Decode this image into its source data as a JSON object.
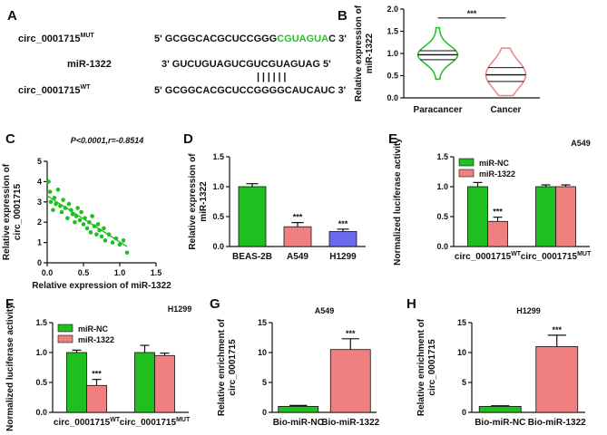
{
  "panels": {
    "A": "A",
    "B": "B",
    "C": "C",
    "D": "D",
    "E": "E",
    "F": "F",
    "G": "G",
    "H": "H"
  },
  "colors": {
    "green": "#1fbf1f",
    "red": "#f08080",
    "blue": "#6b6bf0",
    "black": "#111111",
    "seq_green": "#2bbf2b"
  },
  "panelA": {
    "mut_label": "circ_0001715",
    "mut_sup": "MUT",
    "mut_seq_prefix": "5' GCGGCACGCUCCGGG",
    "mut_seq_green": "CGUAGUA",
    "mut_seq_suffix": "C 3'",
    "mir_label": "miR-1322",
    "mir_seq": "3' GUCUGUAGUCGUCGUAGUAG 5'",
    "pairing": "||||||",
    "wt_label": "circ_0001715",
    "wt_sup": "WT",
    "wt_seq": "5' GCGGCACGCUCCGGGGCAUCAUC 3'"
  },
  "chart_data": [
    {
      "id": "B",
      "type": "violin",
      "ylabel": "Relative expression of miR-1322",
      "ylim": [
        0,
        2.0
      ],
      "yticks": [
        "0.0",
        "0.5",
        "1.0",
        "1.5",
        "2.0"
      ],
      "categories": [
        "Paracancer",
        "Cancer"
      ],
      "series": [
        {
          "name": "Paracancer",
          "min": 0.42,
          "q1": 0.86,
          "median": 0.97,
          "q3": 1.06,
          "max": 1.58,
          "color": "#1fbf1f"
        },
        {
          "name": "Cancer",
          "min": 0.05,
          "q1": 0.37,
          "median": 0.52,
          "q3": 0.68,
          "max": 1.12,
          "color": "#f08080"
        }
      ],
      "significance": "***"
    },
    {
      "id": "C",
      "type": "scatter",
      "title": "P<0.0001,r=-0.8514",
      "xlabel": "Relative expression of miR-1322",
      "ylabel": "Relative expression of circ_0001715",
      "xlim": [
        0,
        1.5
      ],
      "ylim": [
        0,
        5
      ],
      "xticks": [
        "0.0",
        "0.5",
        "1.0",
        "1.5"
      ],
      "yticks": [
        "0",
        "1",
        "2",
        "3",
        "4",
        "5"
      ],
      "points": [
        [
          0.02,
          4.0
        ],
        [
          0.04,
          3.5
        ],
        [
          0.05,
          3.0
        ],
        [
          0.08,
          2.6
        ],
        [
          0.1,
          3.2
        ],
        [
          0.12,
          2.9
        ],
        [
          0.15,
          3.6
        ],
        [
          0.18,
          2.8
        ],
        [
          0.2,
          2.5
        ],
        [
          0.22,
          3.1
        ],
        [
          0.25,
          2.7
        ],
        [
          0.28,
          2.2
        ],
        [
          0.3,
          2.9
        ],
        [
          0.33,
          2.6
        ],
        [
          0.35,
          2.4
        ],
        [
          0.38,
          2.0
        ],
        [
          0.4,
          2.3
        ],
        [
          0.42,
          2.7
        ],
        [
          0.45,
          2.1
        ],
        [
          0.47,
          2.5
        ],
        [
          0.5,
          1.9
        ],
        [
          0.52,
          2.2
        ],
        [
          0.55,
          1.7
        ],
        [
          0.58,
          2.0
        ],
        [
          0.6,
          1.5
        ],
        [
          0.62,
          2.3
        ],
        [
          0.65,
          1.8
        ],
        [
          0.68,
          1.4
        ],
        [
          0.7,
          1.9
        ],
        [
          0.72,
          1.6
        ],
        [
          0.75,
          1.3
        ],
        [
          0.78,
          1.7
        ],
        [
          0.8,
          1.1
        ],
        [
          0.85,
          1.4
        ],
        [
          0.9,
          1.0
        ],
        [
          0.95,
          1.2
        ],
        [
          1.0,
          0.9
        ],
        [
          1.05,
          1.1
        ],
        [
          1.1,
          0.5
        ]
      ],
      "fit": {
        "x": [
          0.0,
          1.1
        ],
        "y": [
          3.3,
          0.8
        ]
      },
      "color": "#1fbf1f"
    },
    {
      "id": "D",
      "type": "bar",
      "ylabel": "Relative expression of miR-1322",
      "ylim": [
        0,
        1.5
      ],
      "yticks": [
        "0.0",
        "0.5",
        "1.0",
        "1.5"
      ],
      "categories": [
        "BEAS-2B",
        "A549",
        "H1299"
      ],
      "values": [
        1.0,
        0.33,
        0.25
      ],
      "errors": [
        0.05,
        0.07,
        0.04
      ],
      "colors": [
        "#1fbf1f",
        "#f08080",
        "#6b6bf0"
      ],
      "significance": [
        "",
        "***",
        "***"
      ]
    },
    {
      "id": "E",
      "type": "grouped-bar",
      "title": "A549",
      "ylabel": "Normalized luciferase activity",
      "ylim": [
        0,
        1.5
      ],
      "yticks": [
        "0.0",
        "0.5",
        "1.0",
        "1.5"
      ],
      "categories": [
        {
          "base": "circ_0001715",
          "sup": "WT"
        },
        {
          "base": "circ_0001715",
          "sup": "MUT"
        }
      ],
      "series": [
        {
          "name": "miR-NC",
          "values": [
            1.0,
            1.0
          ],
          "errors": [
            0.07,
            0.03
          ],
          "color": "#1fbf1f"
        },
        {
          "name": "miR-1322",
          "values": [
            0.42,
            1.0
          ],
          "errors": [
            0.07,
            0.03
          ],
          "color": "#f08080"
        }
      ],
      "significance": [
        [
          "",
          "***"
        ],
        [
          "",
          ""
        ]
      ],
      "legend": "top-left"
    },
    {
      "id": "F",
      "type": "grouped-bar",
      "title": "H1299",
      "ylabel": "Normalized luciferase activity",
      "ylim": [
        0,
        1.5
      ],
      "yticks": [
        "0.0",
        "0.5",
        "1.0",
        "1.5"
      ],
      "categories": [
        {
          "base": "circ_0001715",
          "sup": "WT"
        },
        {
          "base": "circ_0001715",
          "sup": "MUT"
        }
      ],
      "series": [
        {
          "name": "miR-NC",
          "values": [
            1.0,
            1.0
          ],
          "errors": [
            0.04,
            0.12
          ],
          "color": "#1fbf1f"
        },
        {
          "name": "miR-1322",
          "values": [
            0.45,
            0.95
          ],
          "errors": [
            0.1,
            0.04
          ],
          "color": "#f08080"
        }
      ],
      "significance": [
        [
          "",
          "***"
        ],
        [
          "",
          ""
        ]
      ],
      "legend": "top-left"
    },
    {
      "id": "G",
      "type": "bar",
      "title": "A549",
      "ylabel": "Relative enrichment of circ_0001715",
      "ylim": [
        0,
        15
      ],
      "yticks": [
        "0",
        "5",
        "10",
        "15"
      ],
      "categories": [
        "Bio-miR-NC",
        "Bio-miR-1322"
      ],
      "values": [
        1.0,
        10.5
      ],
      "errors": [
        0.15,
        1.8
      ],
      "colors": [
        "#1fbf1f",
        "#f08080"
      ],
      "significance": [
        "",
        "***"
      ]
    },
    {
      "id": "H",
      "type": "bar",
      "title": "H1299",
      "ylabel": "Relative enrichment of circ_0001715",
      "ylim": [
        0,
        15
      ],
      "yticks": [
        "0",
        "5",
        "10",
        "15"
      ],
      "categories": [
        "Bio-miR-NC",
        "Bio-miR-1322"
      ],
      "values": [
        1.0,
        11.0
      ],
      "errors": [
        0.1,
        1.9
      ],
      "colors": [
        "#1fbf1f",
        "#f08080"
      ],
      "significance": [
        "",
        "***"
      ]
    }
  ]
}
